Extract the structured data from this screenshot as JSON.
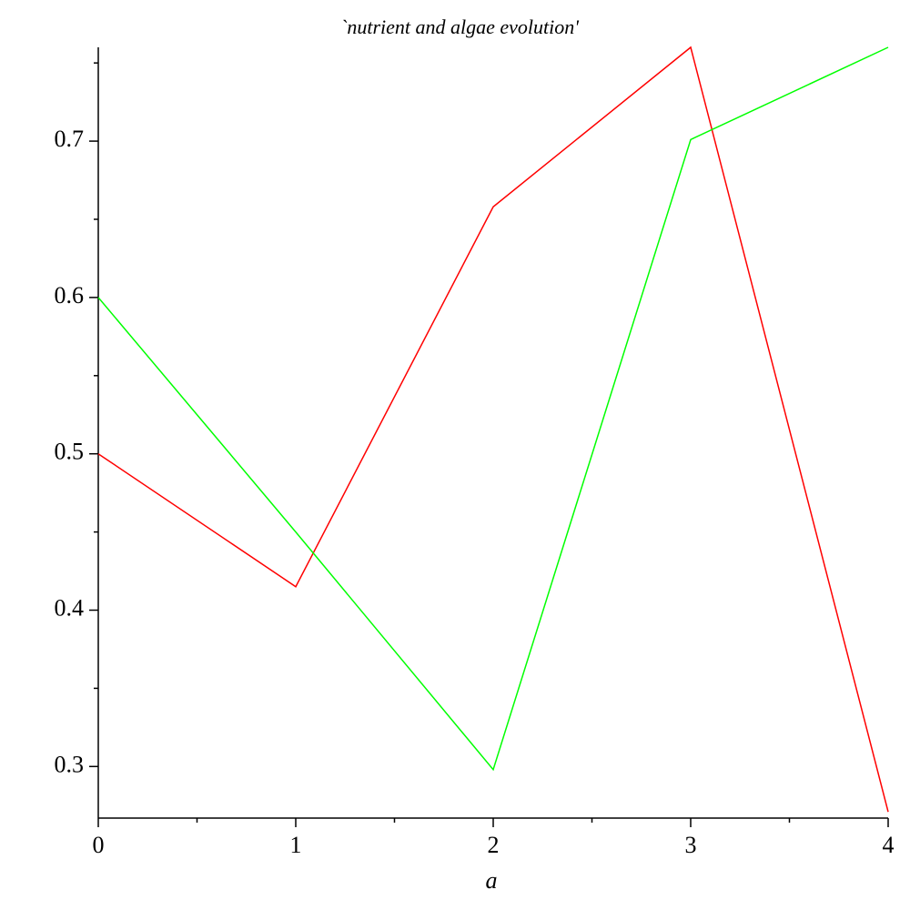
{
  "chart_data": {
    "type": "line",
    "title": "`nutrient and algae evolution'",
    "x_label": "a",
    "x": [
      0,
      1,
      2,
      3,
      4
    ],
    "series": [
      {
        "color": "#ff0000",
        "values": [
          0.5,
          0.415,
          0.658,
          0.76,
          0.271
        ]
      },
      {
        "color": "#00ff00",
        "values": [
          0.6,
          0.45,
          0.298,
          0.701,
          0.76
        ]
      }
    ],
    "xlim": [
      0,
      4
    ],
    "ylim": [
      0.267,
      0.76
    ],
    "xticks": [
      0,
      1,
      2,
      3,
      4
    ],
    "yticks": [
      0.3,
      0.4,
      0.5,
      0.6,
      0.7
    ],
    "xminorticks": [
      0.5,
      1.5,
      2.5,
      3.5
    ],
    "yminorticks": [
      0.35,
      0.45,
      0.55,
      0.65,
      0.75
    ],
    "grid": false
  }
}
